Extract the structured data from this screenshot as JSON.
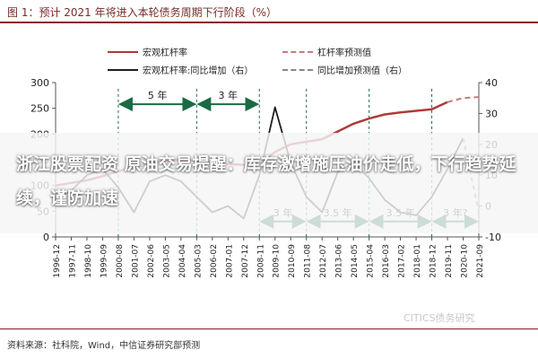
{
  "figure": {
    "title": "图 1：预计 2021 年将进入本轮债务周期下行阶段（%）",
    "source": "资料来源：社科院，Wind，中信证券研究部预测"
  },
  "banner": {
    "text": "浙江股票配资 原油交易提醒：库存激增施压油价走低，下行趋势延续，谨防加速"
  },
  "watermark": "CITICS债务研究",
  "legend": [
    {
      "label": "宏观杠杆率",
      "color": "#b03a3a",
      "dash": "solid"
    },
    {
      "label": "杠杆率预测值",
      "color": "#c77c7c",
      "dash": "dashed"
    },
    {
      "label": "宏观杠杆率:同比增加（右）",
      "color": "#1f1f1f",
      "dash": "solid"
    },
    {
      "label": "同比增加预测值（右）",
      "color": "#888888",
      "dash": "dashed"
    }
  ],
  "chart_data": {
    "type": "line",
    "x": [
      "1996-12",
      "1997-11",
      "1998-10",
      "1999-09",
      "2000-08",
      "2001-07",
      "2002-06",
      "2003-05",
      "2004-04",
      "2005-03",
      "2006-02",
      "2007-01",
      "2007-12",
      "2008-11",
      "2009-10",
      "2010-09",
      "2011-08",
      "2012-07",
      "2013-06",
      "2014-05",
      "2015-04",
      "2016-03",
      "2017-02",
      "2018-01",
      "2018-12",
      "2019-11",
      "2020-10",
      "2021-09"
    ],
    "ylim_left": [
      0,
      300
    ],
    "ylim_right": [
      -10,
      40
    ],
    "yticks_left": [
      0,
      50,
      100,
      150,
      200,
      250,
      300
    ],
    "yticks_right": [
      -10,
      0,
      10,
      20,
      30,
      40
    ],
    "series": [
      {
        "name": "宏观杠杆率",
        "axis": "left",
        "values": [
          100,
          105,
          110,
          118,
          128,
          135,
          142,
          148,
          150,
          148,
          145,
          142,
          140,
          142,
          165,
          180,
          185,
          190,
          205,
          220,
          230,
          238,
          242,
          245,
          248,
          262,
          null,
          null
        ]
      },
      {
        "name": "杠杆率预测值",
        "axis": "left",
        "values": [
          null,
          null,
          null,
          null,
          null,
          null,
          null,
          null,
          null,
          null,
          null,
          null,
          null,
          null,
          null,
          null,
          null,
          null,
          null,
          null,
          null,
          null,
          null,
          null,
          null,
          262,
          270,
          272
        ]
      },
      {
        "name": "宏观杠杆率:同比增加（右）",
        "axis": "right",
        "values": [
          2,
          5,
          10,
          12,
          6,
          -2,
          8,
          10,
          8,
          3,
          -2,
          0,
          -4,
          10,
          32,
          14,
          3,
          -2,
          11,
          14,
          9,
          2,
          -2,
          -3,
          3,
          12,
          22,
          null
        ]
      },
      {
        "name": "同比增加预测值（右）",
        "axis": "right",
        "values": [
          null,
          null,
          null,
          null,
          null,
          null,
          null,
          null,
          null,
          null,
          null,
          null,
          null,
          null,
          null,
          null,
          null,
          null,
          null,
          null,
          null,
          null,
          null,
          null,
          null,
          null,
          22,
          -2
        ]
      }
    ],
    "annotations": [
      {
        "text": "5 年",
        "from": "2000-08",
        "to": "2005-03",
        "level": 33
      },
      {
        "text": "3 年",
        "from": "2005-03",
        "to": "2008-11",
        "level": 33
      },
      {
        "text": "3 年",
        "from": "2008-11",
        "to": "2011-08",
        "level": -5
      },
      {
        "text": "3.5 年",
        "from": "2011-08",
        "to": "2015-04",
        "level": -5
      },
      {
        "text": "3.5 年",
        "from": "2015-04",
        "to": "2018-12",
        "level": -5
      },
      {
        "text": "3 年?",
        "from": "2018-12",
        "to": "2021-09",
        "level": -5
      }
    ]
  }
}
